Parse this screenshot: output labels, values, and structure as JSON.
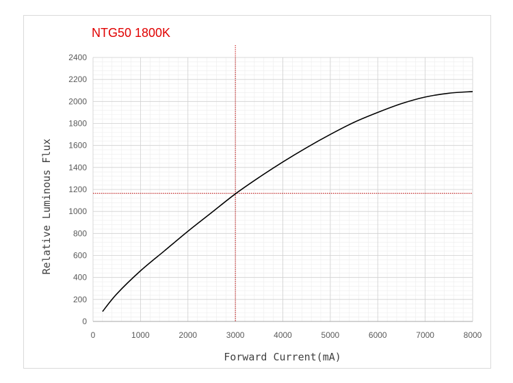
{
  "chart_data": {
    "type": "line",
    "title": "NTG50 1800K",
    "xlabel": "Forward Current(mA)",
    "ylabel": "Relative Luminous Flux",
    "xlim": [
      0,
      8000
    ],
    "ylim": [
      0,
      2400
    ],
    "x_ticks": [
      "0",
      "1000",
      "2000",
      "3000",
      "4000",
      "5000",
      "6000",
      "7000",
      "8000"
    ],
    "y_ticks": [
      "0",
      "200",
      "400",
      "600",
      "800",
      "1000",
      "1200",
      "1400",
      "1600",
      "1800",
      "2000",
      "2200",
      "2400"
    ],
    "grid": true,
    "series": [
      {
        "color": "#000000",
        "x": [
          200,
          500,
          1000,
          1500,
          2000,
          2500,
          3000,
          3500,
          4000,
          4500,
          5000,
          5500,
          6000,
          6500,
          7000,
          7500,
          8000
        ],
        "y": [
          90,
          250,
          460,
          640,
          820,
          990,
          1160,
          1310,
          1450,
          1580,
          1700,
          1810,
          1900,
          1980,
          2040,
          2075,
          2090
        ]
      }
    ],
    "reference_lines": [
      {
        "axis": "x",
        "value": 3000,
        "color": "#c00000",
        "style": "dotted"
      },
      {
        "axis": "y",
        "value": 1165,
        "color": "#c00000",
        "style": "dotted"
      }
    ]
  }
}
